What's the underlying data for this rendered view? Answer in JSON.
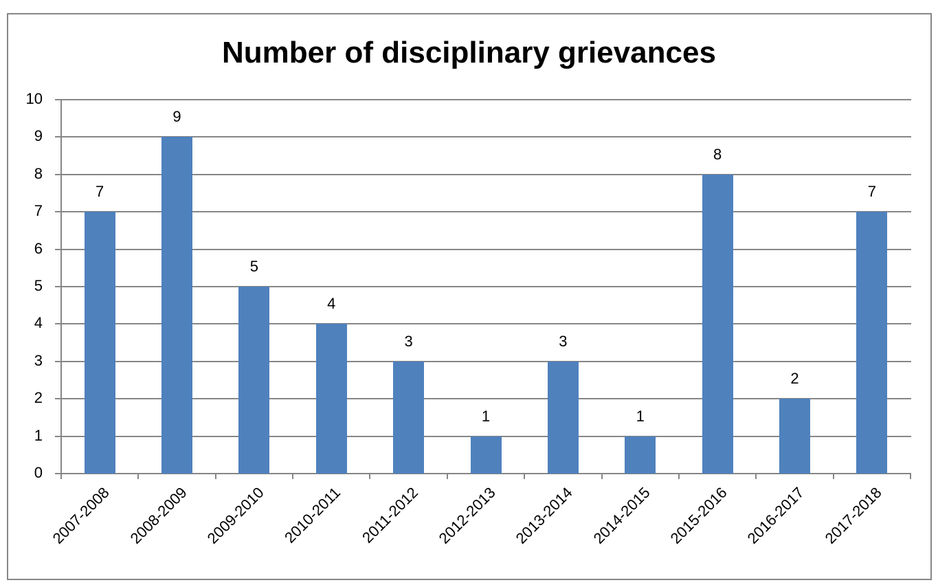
{
  "chart_data": {
    "type": "bar",
    "title": "Number of disciplinary grievances",
    "xlabel": "",
    "ylabel": "",
    "ylim": [
      0,
      10
    ],
    "yticks": [
      "0",
      "1",
      "2",
      "3",
      "4",
      "5",
      "6",
      "7",
      "8",
      "9",
      "10"
    ],
    "grid": true,
    "legend": "none",
    "bar_color": "#4f81bd",
    "categories": [
      "2007-2008",
      "2008-2009",
      "2009-2010",
      "2010-2011",
      "2011-2012",
      "2012-2013",
      "2013-2014",
      "2014-2015",
      "2015-2016",
      "2016-2017",
      "2017-2018"
    ],
    "values": [
      7,
      9,
      5,
      4,
      3,
      1,
      3,
      1,
      8,
      2,
      7
    ],
    "value_labels": [
      "7",
      "9",
      "5",
      "4",
      "3",
      "1",
      "3",
      "1",
      "8",
      "2",
      "7"
    ]
  }
}
